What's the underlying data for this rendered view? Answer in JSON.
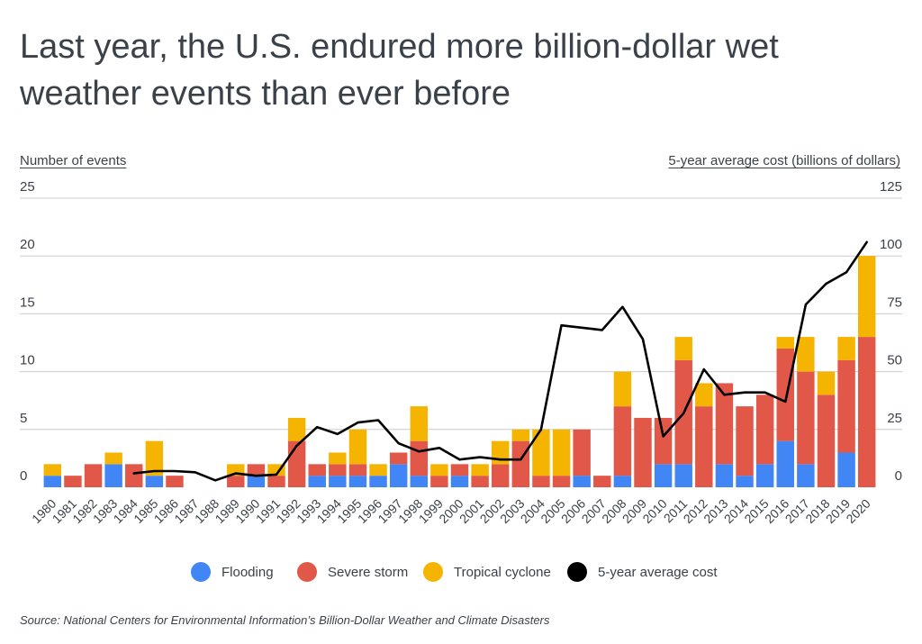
{
  "title": "Last year, the U.S. endured more billion-dollar wet weather events than ever before",
  "source": "Source:  National Centers for Environmental Information’s Billion-Dollar Weather and Climate Disasters",
  "chart_data": {
    "type": "bar",
    "stacked": true,
    "categories": [
      "1980",
      "1981",
      "1982",
      "1983",
      "1984",
      "1985",
      "1986",
      "1987",
      "1988",
      "1989",
      "1990",
      "1991",
      "1992",
      "1993",
      "1994",
      "1995",
      "1996",
      "1997",
      "1998",
      "1999",
      "2000",
      "2001",
      "2002",
      "2003",
      "2004",
      "2005",
      "2006",
      "2007",
      "2008",
      "2009",
      "2010",
      "2011",
      "2012",
      "2013",
      "2014",
      "2015",
      "2016",
      "2017",
      "2018",
      "2019",
      "2020"
    ],
    "ylabel": "Number of events",
    "ylabel_right": "5-year average cost (billions of dollars)",
    "ylim": [
      0,
      25
    ],
    "ylim_right": [
      0,
      125
    ],
    "yticks": [
      "0",
      "5",
      "10",
      "15",
      "20",
      "25"
    ],
    "yticks_right": [
      "0",
      "25",
      "50",
      "75",
      "100",
      "125"
    ],
    "grid": true,
    "legend_position": "bottom",
    "series": [
      {
        "name": "Flooding",
        "color": "#4285f4",
        "values": [
          1,
          0,
          0,
          2,
          0,
          1,
          0,
          0,
          0,
          0,
          1,
          0,
          0,
          1,
          1,
          1,
          1,
          2,
          1,
          0,
          1,
          0,
          0,
          0,
          0,
          0,
          1,
          0,
          1,
          0,
          2,
          2,
          0,
          2,
          1,
          2,
          4,
          2,
          0,
          3,
          0
        ]
      },
      {
        "name": "Severe storm",
        "color": "#e15849",
        "values": [
          0,
          1,
          2,
          0,
          2,
          0,
          1,
          0,
          0,
          1,
          1,
          1,
          4,
          1,
          1,
          1,
          0,
          1,
          3,
          1,
          1,
          1,
          2,
          4,
          1,
          1,
          4,
          1,
          6,
          6,
          4,
          9,
          7,
          7,
          6,
          6,
          8,
          8,
          8,
          8,
          13
        ]
      },
      {
        "name": "Tropical cyclone",
        "color": "#f5b400",
        "values": [
          1,
          0,
          0,
          1,
          0,
          3,
          0,
          0,
          0,
          1,
          0,
          1,
          2,
          0,
          1,
          3,
          1,
          0,
          3,
          1,
          0,
          1,
          2,
          1,
          4,
          4,
          0,
          0,
          3,
          0,
          0,
          2,
          2,
          0,
          0,
          0,
          1,
          3,
          2,
          2,
          7
        ]
      },
      {
        "name": "5-year average cost",
        "type": "line",
        "axis": "right",
        "color": "#000000",
        "x": [
          "1984",
          "1985",
          "1986",
          "1987",
          "1988",
          "1989",
          "1990",
          "1991",
          "1992",
          "1993",
          "1994",
          "1995",
          "1996",
          "1997",
          "1998",
          "1999",
          "2000",
          "2001",
          "2002",
          "2003",
          "2004",
          "2005",
          "2006",
          "2007",
          "2008",
          "2009",
          "2010",
          "2011",
          "2012",
          "2013",
          "2014",
          "2015",
          "2016",
          "2017",
          "2018",
          "2019",
          "2020"
        ],
        "values": [
          6,
          7,
          7,
          6.5,
          3,
          6,
          5,
          5.5,
          18,
          26,
          23,
          28,
          29,
          19,
          15.5,
          17,
          12,
          13,
          12,
          12,
          25,
          70,
          69,
          68,
          78,
          64,
          22,
          32,
          51,
          40,
          41,
          41,
          37,
          79,
          88,
          93,
          106
        ]
      }
    ]
  }
}
